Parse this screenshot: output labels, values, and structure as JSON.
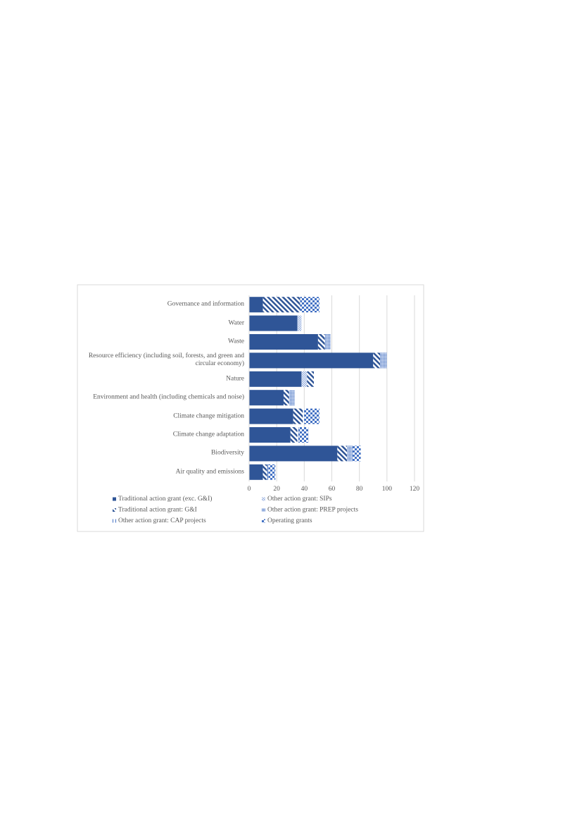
{
  "chart_data": {
    "type": "bar",
    "orientation": "horizontal",
    "stacked": true,
    "categories": [
      "Governance and information",
      "Water",
      "Waste",
      "Resource efficiency (including soil, forests, and green and circular economy)",
      "Nature",
      "Environment and health (including chemicals and noise)",
      "Climate change mitigation",
      "Climate change adaptation",
      "Biodiversity",
      "Air quality and emissions"
    ],
    "series": [
      {
        "name": "Traditional action grant (exc. G&I)",
        "color": "#2f5597",
        "values": [
          10,
          35,
          50,
          90,
          38,
          25,
          32,
          30,
          64,
          10
        ]
      },
      {
        "name": "Other action grant: SIPs",
        "color": "#8faadc",
        "values": [
          0,
          3,
          0,
          0,
          4,
          0,
          0,
          0,
          0,
          0
        ]
      },
      {
        "name": "Traditional action grant: G&I",
        "color": "#2f5597",
        "values": [
          27,
          0,
          5,
          5,
          5,
          4,
          7,
          5,
          7,
          3
        ]
      },
      {
        "name": "Other action grant: PREP projects",
        "color": "#4472c4",
        "values": [
          0,
          0,
          4,
          5,
          0,
          4,
          0,
          0,
          4,
          0
        ]
      },
      {
        "name": "Other action grant: CAP projects",
        "color": "#4472c4",
        "values": [
          0,
          0,
          0,
          0,
          1,
          0,
          1,
          1,
          0,
          1
        ]
      },
      {
        "name": "Operating grants",
        "color": "#4472c4",
        "values": [
          14,
          0,
          0,
          0,
          0,
          0,
          11,
          7,
          6,
          5
        ]
      }
    ],
    "xlim": [
      0,
      120
    ],
    "xticks": [
      0,
      20,
      40,
      60,
      80,
      100,
      120
    ],
    "grid": true,
    "legend": "bottom"
  }
}
